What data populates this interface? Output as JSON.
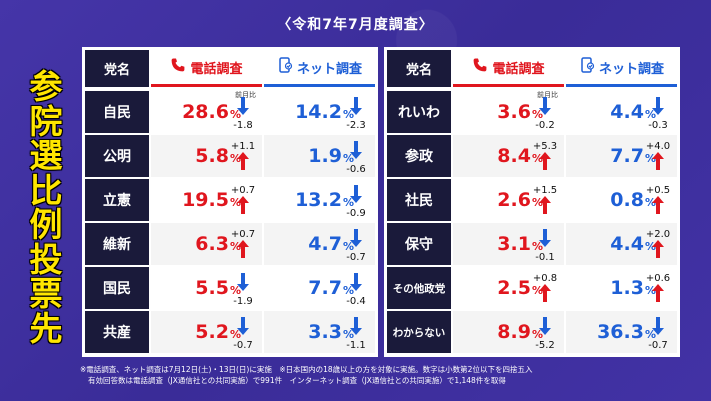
{
  "subtitle": "〈令和7年7月度調査〉",
  "title_chars": [
    "参",
    "院",
    "選",
    "比",
    "例",
    "投",
    "票",
    "先"
  ],
  "headers": {
    "party": "党名",
    "phone": "電話調査",
    "net": "ネット調査"
  },
  "prev_month_label": "前月比",
  "colors": {
    "phone": "#e0161e",
    "net": "#1e5fd6",
    "up": "#e0161e",
    "down": "#1e5fd6"
  },
  "left_rows": [
    {
      "party": "自民",
      "phone": "28.6",
      "phone_dir": "down",
      "phone_delta": "-1.8",
      "net": "14.2",
      "net_dir": "down",
      "net_delta": "-2.3"
    },
    {
      "party": "公明",
      "phone": "5.8",
      "phone_dir": "up",
      "phone_delta": "+1.1",
      "net": "1.9",
      "net_dir": "down",
      "net_delta": "-0.6"
    },
    {
      "party": "立憲",
      "phone": "19.5",
      "phone_dir": "up",
      "phone_delta": "+0.7",
      "net": "13.2",
      "net_dir": "down",
      "net_delta": "-0.9"
    },
    {
      "party": "維新",
      "phone": "6.3",
      "phone_dir": "up",
      "phone_delta": "+0.7",
      "net": "4.7",
      "net_dir": "down",
      "net_delta": "-0.7"
    },
    {
      "party": "国民",
      "phone": "5.5",
      "phone_dir": "down",
      "phone_delta": "-1.9",
      "net": "7.7",
      "net_dir": "down",
      "net_delta": "-0.4"
    },
    {
      "party": "共産",
      "phone": "5.2",
      "phone_dir": "down",
      "phone_delta": "-0.7",
      "net": "3.3",
      "net_dir": "down",
      "net_delta": "-1.1"
    }
  ],
  "right_rows": [
    {
      "party": "れいわ",
      "phone": "3.6",
      "phone_dir": "down",
      "phone_delta": "-0.2",
      "net": "4.4",
      "net_dir": "down",
      "net_delta": "-0.3"
    },
    {
      "party": "参政",
      "phone": "8.4",
      "phone_dir": "up",
      "phone_delta": "+5.3",
      "net": "7.7",
      "net_dir": "up",
      "net_delta": "+4.0"
    },
    {
      "party": "社民",
      "phone": "2.6",
      "phone_dir": "up",
      "phone_delta": "+1.5",
      "net": "0.8",
      "net_dir": "up",
      "net_delta": "+0.5"
    },
    {
      "party": "保守",
      "phone": "3.1",
      "phone_dir": "down",
      "phone_delta": "-0.1",
      "net": "4.4",
      "net_dir": "up",
      "net_delta": "+2.0"
    },
    {
      "party": "その他政党",
      "phone": "2.5",
      "phone_dir": "up",
      "phone_delta": "+0.8",
      "net": "1.3",
      "net_dir": "up",
      "net_delta": "+0.6"
    },
    {
      "party": "わからない",
      "phone": "8.9",
      "phone_dir": "down",
      "phone_delta": "-5.2",
      "net": "36.3",
      "net_dir": "down",
      "net_delta": "-0.7"
    }
  ],
  "pct_sign": "%",
  "footer": [
    "※電話調査、ネット調査は7月12日(土)・13日(日)に実施　※日本国内の18歳以上の方を対象に実施。数字は小数第2位以下を四捨五入",
    "有効回答数は電話調査（JX通信社との共同実施）で991件　インターネット調査（JX通信社との共同実施）で1,148件を取得"
  ]
}
